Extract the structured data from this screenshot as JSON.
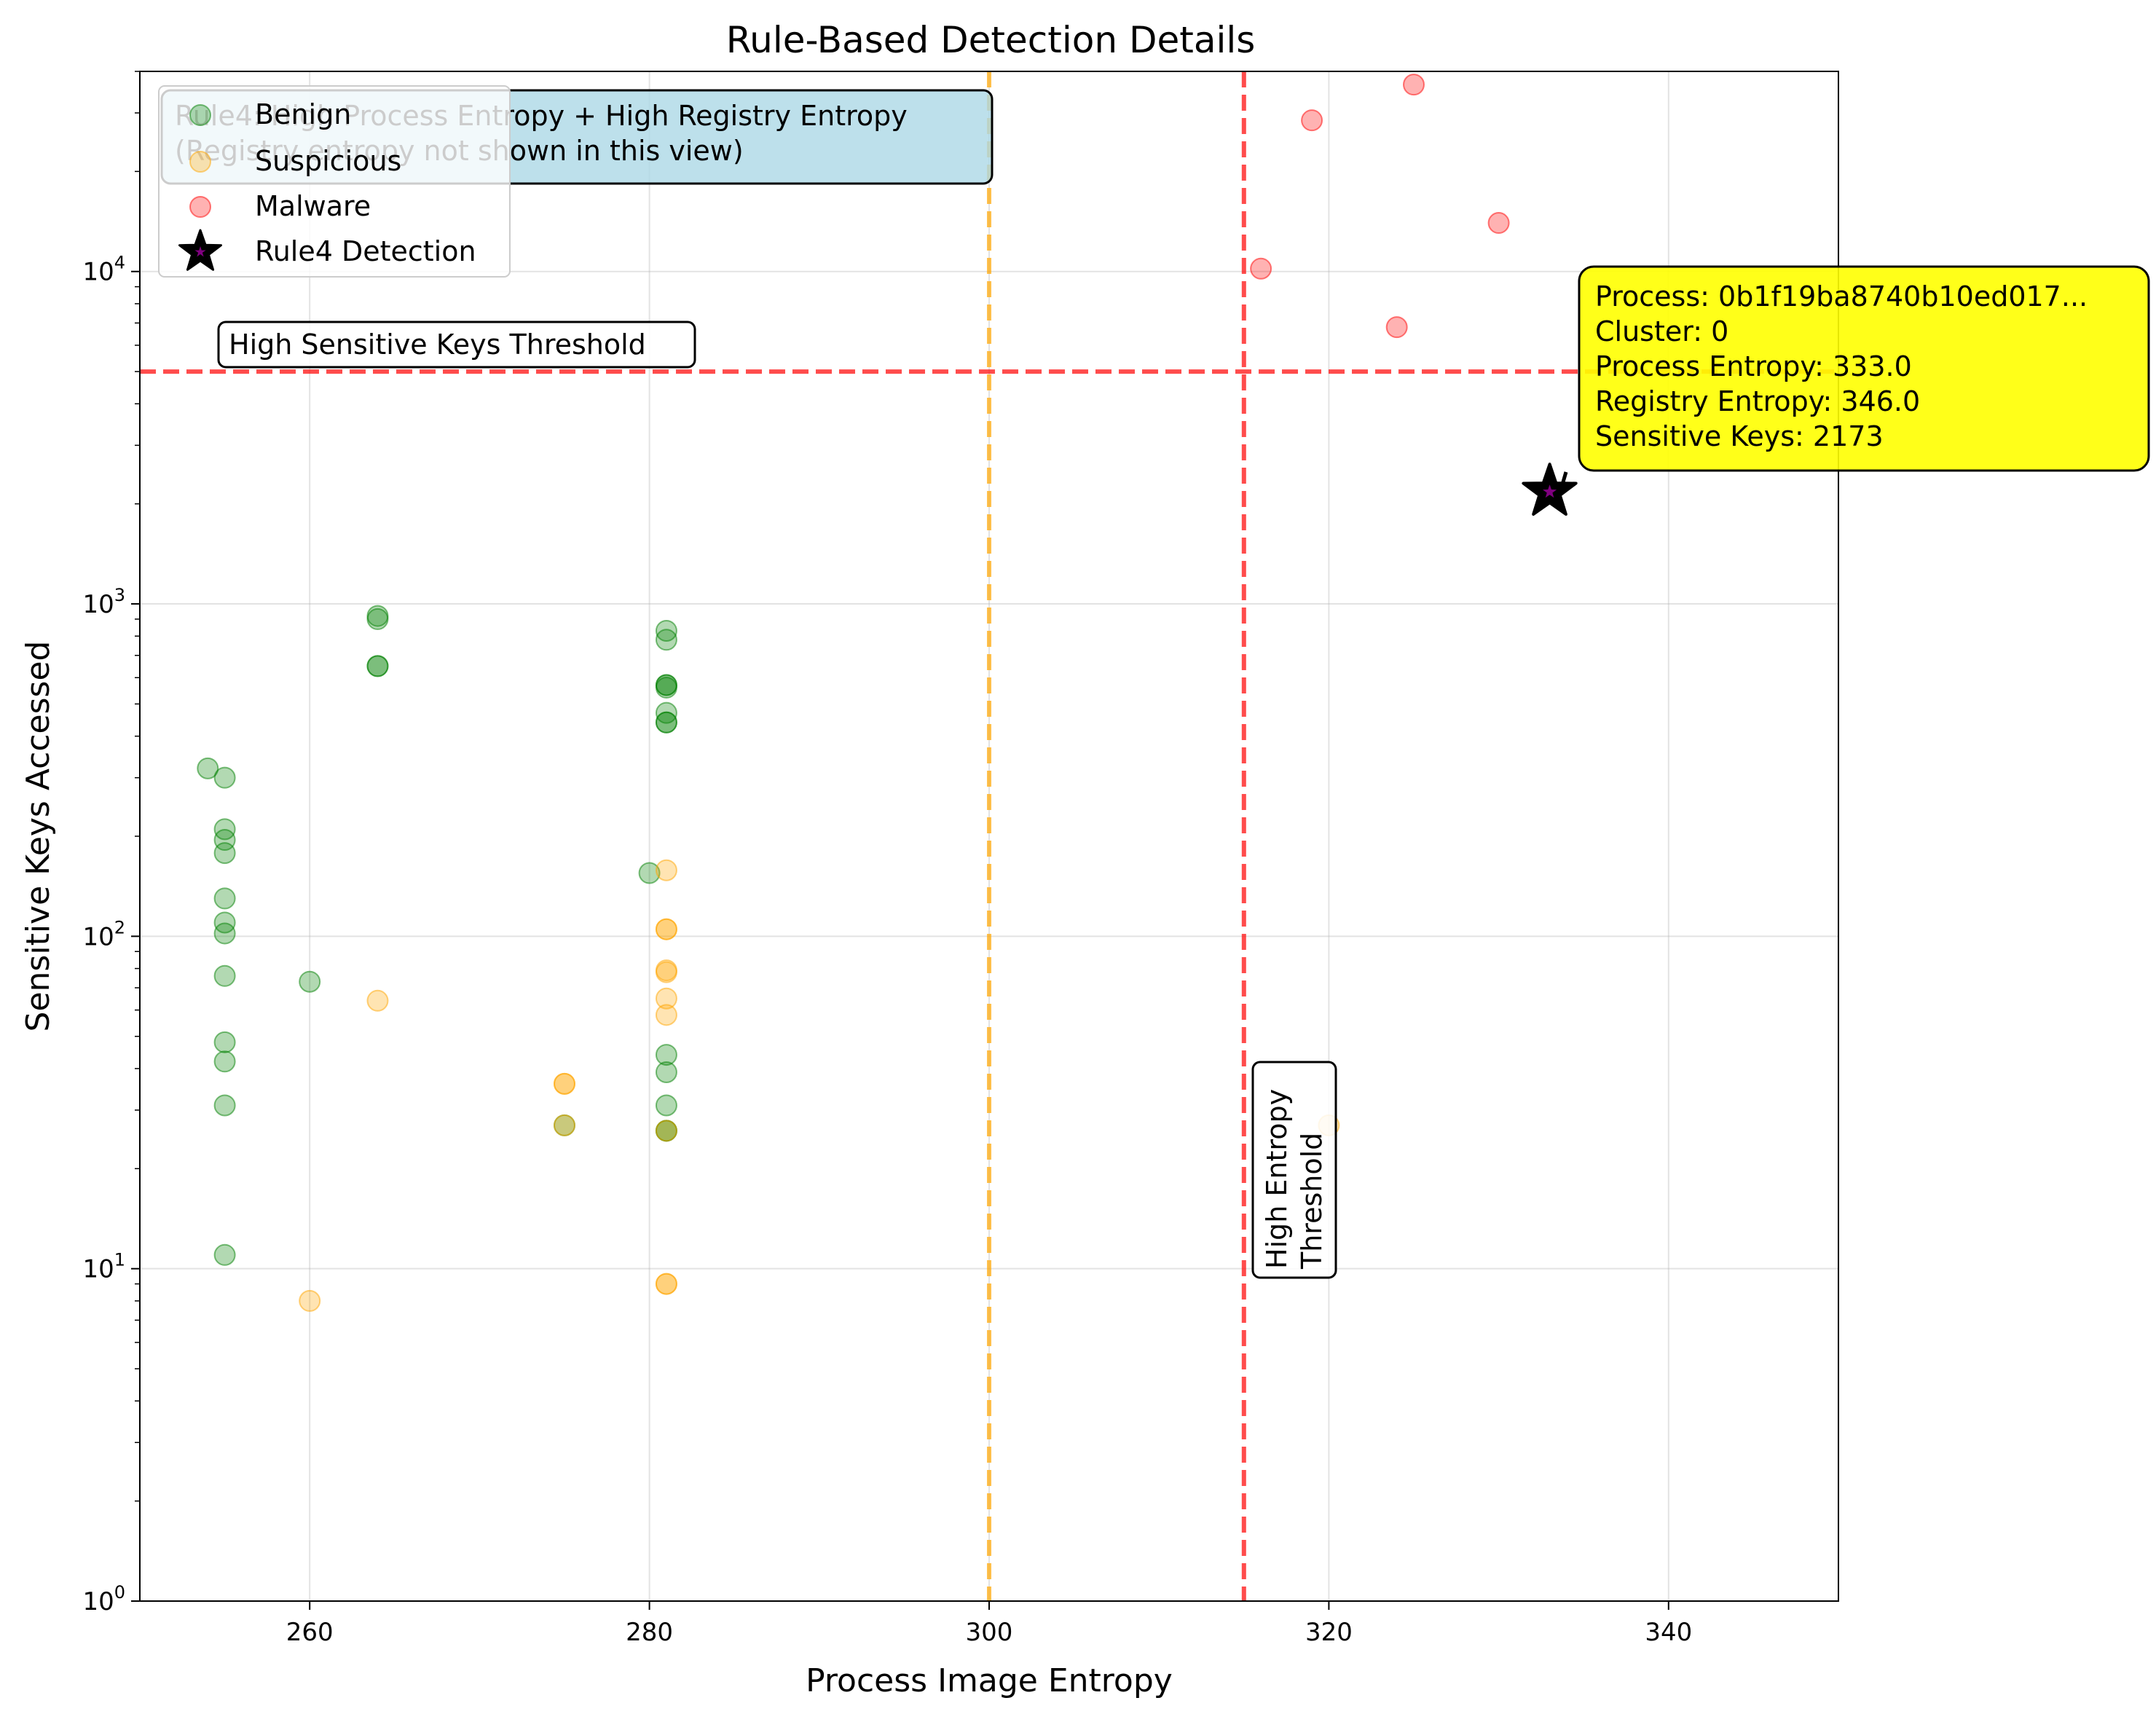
{
  "chart_data": {
    "type": "scatter",
    "title": "Rule-Based Detection Details",
    "xlabel": "Process Image Entropy",
    "ylabel": "Sensitive Keys Accessed",
    "xlim": [
      250,
      350
    ],
    "ylim": [
      1,
      40000
    ],
    "yscale": "log",
    "grid": true,
    "x_ticks": [
      260,
      280,
      300,
      320,
      340
    ],
    "y_ticks": [
      1,
      10,
      100,
      1000,
      10000
    ],
    "y_tick_labels": [
      {
        "base": "10",
        "exp": "0"
      },
      {
        "base": "10",
        "exp": "1"
      },
      {
        "base": "10",
        "exp": "2"
      },
      {
        "base": "10",
        "exp": "3"
      },
      {
        "base": "10",
        "exp": "4"
      }
    ],
    "legend_position": "top-left",
    "series": [
      {
        "name": "Benign",
        "color": "#008000",
        "points": [
          [
            254,
            320
          ],
          [
            255,
            300
          ],
          [
            255,
            210
          ],
          [
            255,
            195
          ],
          [
            255,
            178
          ],
          [
            255,
            130
          ],
          [
            255,
            110
          ],
          [
            255,
            102
          ],
          [
            255,
            76
          ],
          [
            255,
            48
          ],
          [
            255,
            42
          ],
          [
            255,
            31
          ],
          [
            255,
            11
          ],
          [
            260,
            73
          ],
          [
            264,
            920
          ],
          [
            264,
            900
          ],
          [
            264,
            650
          ],
          [
            264,
            650
          ],
          [
            275,
            27
          ],
          [
            280,
            155
          ],
          [
            281,
            830
          ],
          [
            281,
            780
          ],
          [
            281,
            570
          ],
          [
            281,
            570
          ],
          [
            281,
            560
          ],
          [
            281,
            470
          ],
          [
            281,
            440
          ],
          [
            281,
            440
          ],
          [
            281,
            44
          ],
          [
            281,
            39
          ],
          [
            281,
            31
          ],
          [
            281,
            26
          ],
          [
            281,
            26
          ]
        ]
      },
      {
        "name": "Suspicious",
        "color": "#FFA500",
        "points": [
          [
            260,
            8
          ],
          [
            264,
            64
          ],
          [
            275,
            36
          ],
          [
            275,
            36
          ],
          [
            275,
            27
          ],
          [
            281,
            158
          ],
          [
            281,
            105
          ],
          [
            281,
            105
          ],
          [
            281,
            79
          ],
          [
            281,
            78
          ],
          [
            281,
            65
          ],
          [
            281,
            58
          ],
          [
            281,
            26
          ],
          [
            281,
            9
          ],
          [
            281,
            9
          ],
          [
            320,
            27
          ]
        ]
      },
      {
        "name": "Malware",
        "color": "#FF0000",
        "points": [
          [
            316,
            10200
          ],
          [
            319,
            28500
          ],
          [
            324,
            6800
          ],
          [
            325,
            36500
          ],
          [
            330,
            14000
          ]
        ]
      }
    ],
    "detection": {
      "name": "Rule4 Detection",
      "x": 333.0,
      "y": 2173,
      "marker_color": "#000000",
      "inner_color": "#800080"
    },
    "thresholds": {
      "entropy_line": {
        "x": 315,
        "color": "#FF0000",
        "label": "High Entropy\nThreshold"
      },
      "suspicious_line": {
        "x": 300,
        "color": "#FFA500"
      },
      "keys_line": {
        "y": 5000,
        "color": "#FF0000",
        "label": "High Sensitive Keys Threshold"
      }
    },
    "annotations": {
      "rule_box": {
        "lines": [
          "Rule4: High Process Entropy + High Registry Entropy",
          "(Registry entropy not shown in this view)"
        ],
        "background": "#ADD8E6"
      },
      "detail_box": {
        "lines": [
          "Process: 0b1f19ba8740b10ed017...",
          "Cluster: 0",
          "Process Entropy: 333.0",
          "Registry Entropy: 346.0",
          "Sensitive Keys: 2173"
        ],
        "background": "#FFFF00"
      }
    }
  }
}
